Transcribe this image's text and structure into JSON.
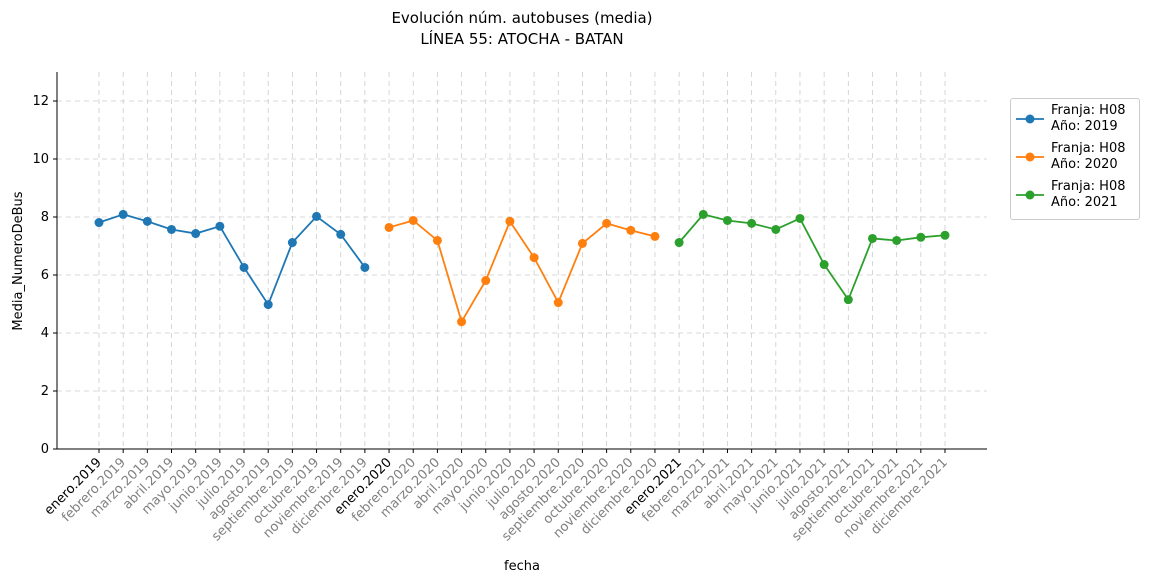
{
  "chart_data": {
    "type": "line",
    "title": "Evolución núm. autobuses (media)",
    "subtitle": "LÍNEA 55: ATOCHA - BATAN",
    "xlabel": "fecha",
    "ylabel": "Media_NumeroDeBus",
    "categories": [
      "enero.2019",
      "febrero.2019",
      "marzo.2019",
      "abril.2019",
      "mayo.2019",
      "junio.2019",
      "julio.2019",
      "agosto.2019",
      "septiembre.2019",
      "octubre.2019",
      "noviembre.2019",
      "diciembre.2019",
      "enero.2020",
      "febrero.2020",
      "marzo.2020",
      "abril.2020",
      "mayo.2020",
      "junio.2020",
      "julio.2020",
      "agosto.2020",
      "septiembre.2020",
      "octubre.2020",
      "noviembre.2020",
      "diciembre.2020",
      "enero.2021",
      "febrero.2021",
      "marzo.2021",
      "abril.2021",
      "mayo.2021",
      "junio.2021",
      "julio.2021",
      "agosto.2021",
      "septiembre.2021",
      "octubre.2021",
      "noviembre.2021",
      "diciembre.2021"
    ],
    "series": [
      {
        "name": "Franja: H08\nAño: 2019",
        "color": "#1f77b4",
        "values": [
          7.81,
          8.09,
          7.85,
          7.57,
          7.43,
          7.68,
          6.26,
          4.98,
          7.12,
          8.02,
          7.4,
          6.26,
          null,
          null,
          null,
          null,
          null,
          null,
          null,
          null,
          null,
          null,
          null,
          null,
          null,
          null,
          null,
          null,
          null,
          null,
          null,
          null,
          null,
          null,
          null,
          null
        ]
      },
      {
        "name": "Franja: H08\nAño: 2020",
        "color": "#ff7f0e",
        "values": [
          null,
          null,
          null,
          null,
          null,
          null,
          null,
          null,
          null,
          null,
          null,
          null,
          7.64,
          7.88,
          7.19,
          4.39,
          5.81,
          7.85,
          6.6,
          5.05,
          7.09,
          7.78,
          7.54,
          7.33,
          null,
          null,
          null,
          null,
          null,
          null,
          null,
          null,
          null,
          null,
          null,
          null
        ]
      },
      {
        "name": "Franja: H08\nAño: 2021",
        "color": "#2ca02c",
        "values": [
          null,
          null,
          null,
          null,
          null,
          null,
          null,
          null,
          null,
          null,
          null,
          null,
          null,
          null,
          null,
          null,
          null,
          null,
          null,
          null,
          null,
          null,
          null,
          null,
          7.12,
          8.09,
          7.88,
          7.78,
          7.57,
          7.95,
          6.36,
          5.15,
          7.26,
          7.19,
          7.3,
          7.37
        ]
      }
    ],
    "ylim": [
      0,
      13
    ],
    "yticks": [
      0,
      2,
      4,
      6,
      8,
      10,
      12
    ],
    "grid": true,
    "legend": "outside upper right"
  }
}
